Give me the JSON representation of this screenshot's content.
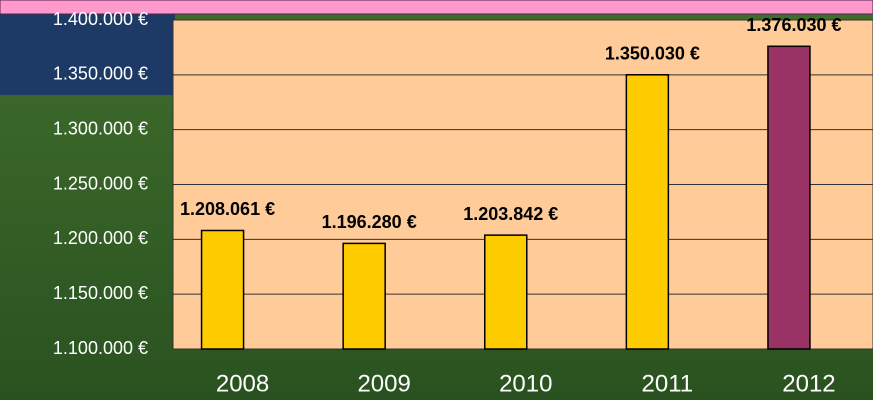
{
  "chart_data": {
    "type": "bar",
    "categories": [
      "2008",
      "2009",
      "2010",
      "2011",
      "2012"
    ],
    "values": [
      1208061,
      1196280,
      1203842,
      1350030,
      1376030
    ],
    "value_labels": [
      "1.208.061 €",
      "1.196.280 €",
      "1.203.842 €",
      "1.350.030 €",
      "1.376.030 €"
    ],
    "colors": [
      "#ffcc00",
      "#ffcc00",
      "#ffcc00",
      "#ffcc00",
      "#993366"
    ],
    "ylim": [
      1100000,
      1400000
    ],
    "yticks": [
      {
        "value": 1100000,
        "label": "1.100.000 €"
      },
      {
        "value": 1150000,
        "label": "1.150.000 €"
      },
      {
        "value": 1200000,
        "label": "1.200.000 €"
      },
      {
        "value": 1250000,
        "label": "1.250.000 €"
      },
      {
        "value": 1300000,
        "label": "1.300.000 €"
      },
      {
        "value": 1350000,
        "label": "1.350.000 €"
      },
      {
        "value": 1400000,
        "label": "1.400.000 €"
      }
    ],
    "grid": true
  }
}
